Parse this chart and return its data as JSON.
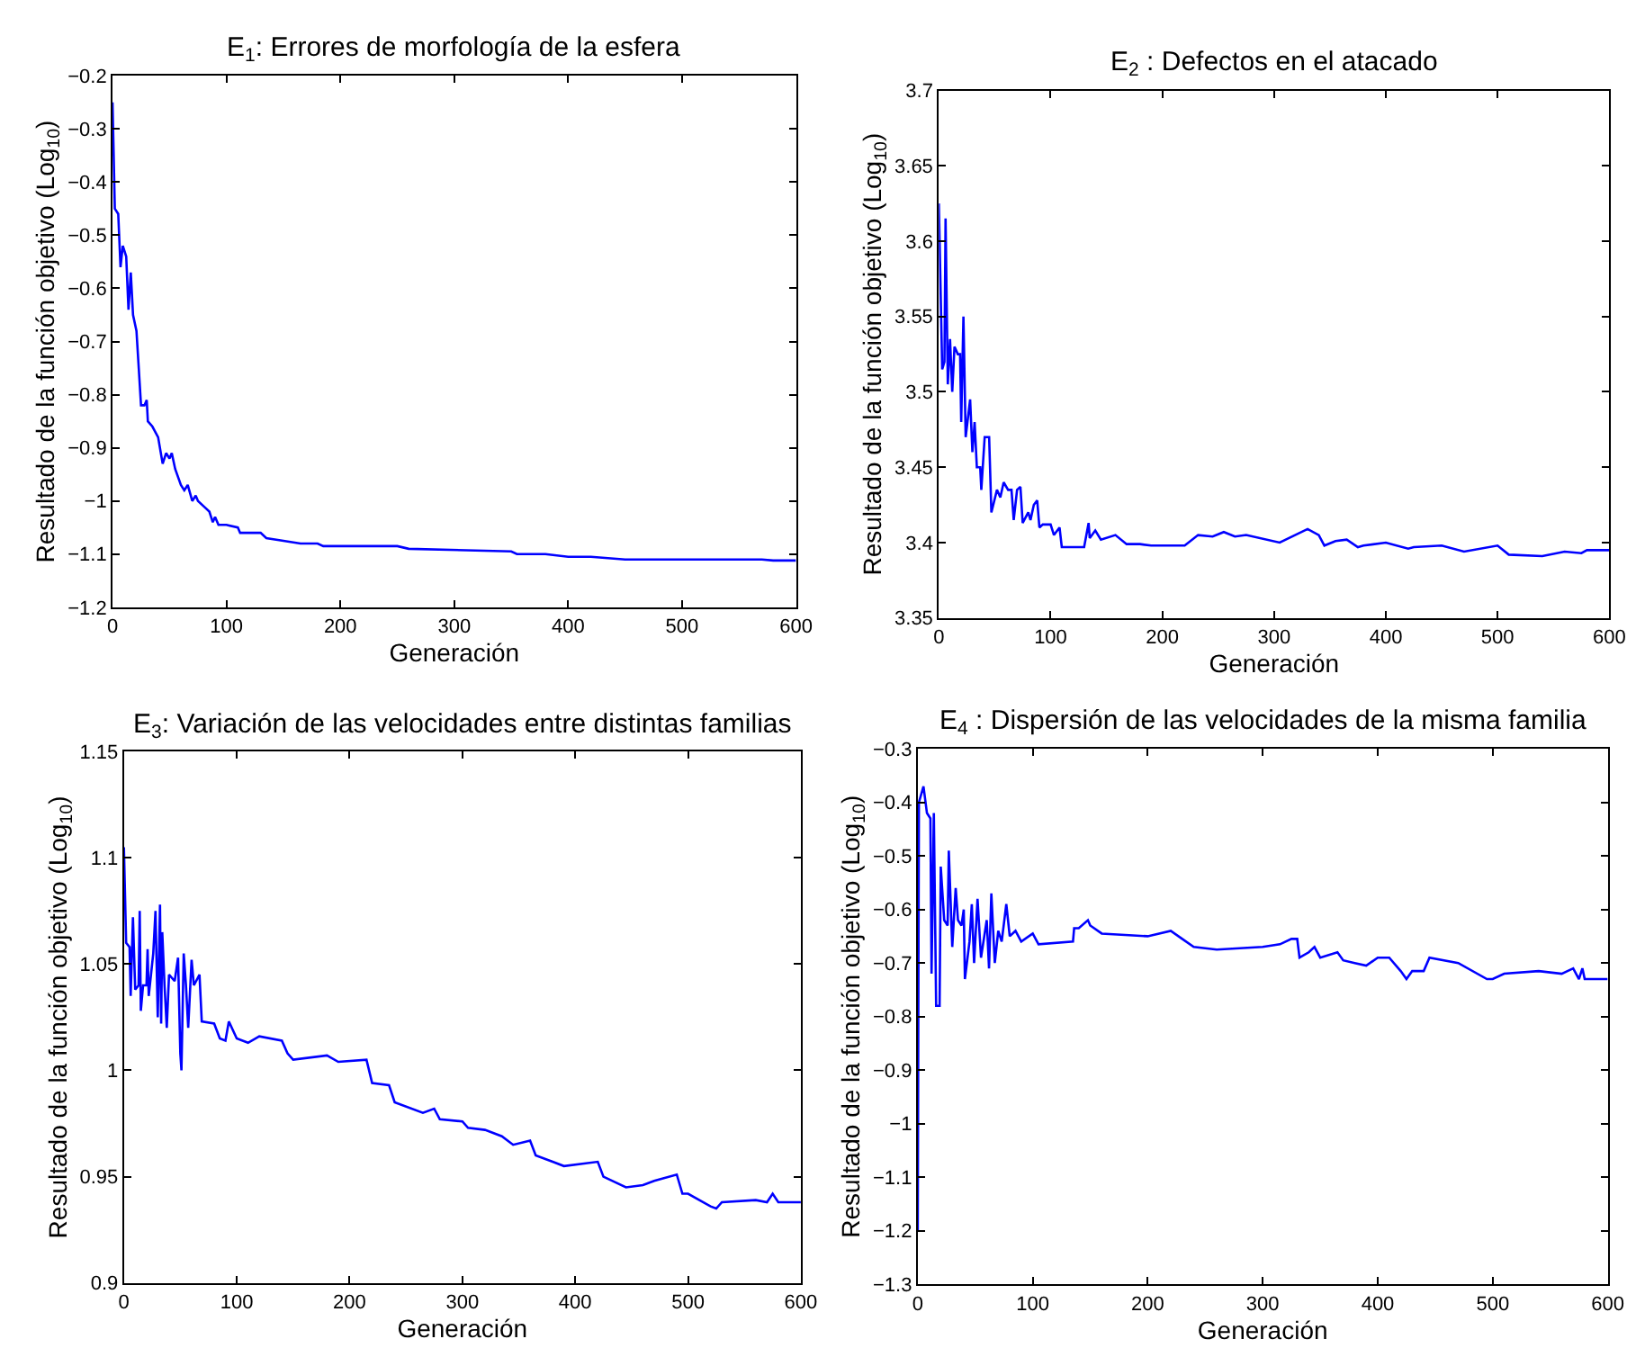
{
  "chart_data": [
    {
      "type": "line",
      "title": "E$_{1}$: Errores de morfología de la esfera",
      "xlabel": "Generación",
      "ylabel": "Resultado de la función objetivo (Log$_{10}$)",
      "xlim": [
        0,
        600
      ],
      "xticks": [
        0,
        100,
        200,
        300,
        400,
        500,
        600
      ],
      "ylim": [
        -1.2,
        -0.2
      ],
      "yticks": [
        -1.2,
        -1.1,
        -1,
        -0.9,
        -0.8,
        -0.7,
        -0.6,
        -0.5,
        -0.4,
        -0.3,
        -0.2
      ],
      "line_style": "solid",
      "series": [
        {
          "color": "#0000ff",
          "x": [
            0,
            2,
            5,
            7,
            9,
            12,
            14,
            16,
            18,
            21,
            23,
            25,
            28,
            30,
            31,
            35,
            40,
            44,
            47,
            50,
            52,
            55,
            60,
            63,
            66,
            70,
            73,
            75,
            80,
            85,
            88,
            90,
            93,
            100,
            110,
            112,
            130,
            135,
            150,
            165,
            180,
            185,
            250,
            260,
            350,
            355,
            380,
            400,
            420,
            450,
            500,
            570,
            580,
            600
          ],
          "values": [
            -0.25,
            -0.45,
            -0.46,
            -0.56,
            -0.52,
            -0.54,
            -0.64,
            -0.57,
            -0.65,
            -0.68,
            -0.75,
            -0.82,
            -0.82,
            -0.81,
            -0.85,
            -0.86,
            -0.88,
            -0.93,
            -0.91,
            -0.92,
            -0.91,
            -0.94,
            -0.97,
            -0.98,
            -0.97,
            -1.0,
            -0.99,
            -1.0,
            -1.01,
            -1.02,
            -1.04,
            -1.03,
            -1.045,
            -1.045,
            -1.05,
            -1.06,
            -1.06,
            -1.07,
            -1.075,
            -1.08,
            -1.08,
            -1.085,
            -1.085,
            -1.09,
            -1.095,
            -1.1,
            -1.1,
            -1.105,
            -1.105,
            -1.11,
            -1.11,
            -1.11,
            -1.112,
            -1.112
          ]
        }
      ]
    },
    {
      "type": "line",
      "title": "E$_{2}$ : Defectos en el atacado",
      "xlabel": "Generación",
      "ylabel": "Resultado de la función objetivo (Log$_{10}$)",
      "xlim": [
        0,
        600
      ],
      "xticks": [
        0,
        100,
        200,
        300,
        400,
        500,
        600
      ],
      "ylim": [
        3.35,
        3.7
      ],
      "yticks": [
        3.35,
        3.4,
        3.45,
        3.5,
        3.55,
        3.6,
        3.65,
        3.7
      ],
      "line_style": "solid",
      "series": [
        {
          "color": "#0000ff",
          "x": [
            0,
            3,
            5,
            6,
            8,
            10,
            12,
            14,
            17,
            19,
            20,
            22,
            24,
            28,
            30,
            32,
            34,
            37,
            38,
            41,
            45,
            47,
            52,
            55,
            58,
            62,
            65,
            67,
            70,
            73,
            75,
            80,
            82,
            85,
            88,
            90,
            93,
            100,
            103,
            108,
            110,
            130,
            134,
            135,
            140,
            145,
            158,
            168,
            180,
            190,
            220,
            232,
            245,
            255,
            265,
            275,
            305,
            330,
            340,
            345,
            355,
            365,
            375,
            380,
            400,
            420,
            425,
            450,
            470,
            500,
            510,
            540,
            560,
            575,
            580,
            600
          ],
          "values": [
            3.625,
            3.515,
            3.52,
            3.615,
            3.505,
            3.535,
            3.5,
            3.53,
            3.525,
            3.525,
            3.48,
            3.55,
            3.47,
            3.495,
            3.46,
            3.48,
            3.45,
            3.45,
            3.435,
            3.47,
            3.47,
            3.42,
            3.435,
            3.43,
            3.44,
            3.435,
            3.435,
            3.415,
            3.435,
            3.437,
            3.413,
            3.42,
            3.415,
            3.425,
            3.428,
            3.41,
            3.412,
            3.412,
            3.405,
            3.41,
            3.397,
            3.397,
            3.413,
            3.403,
            3.408,
            3.402,
            3.405,
            3.399,
            3.399,
            3.398,
            3.398,
            3.405,
            3.404,
            3.407,
            3.404,
            3.405,
            3.4,
            3.409,
            3.405,
            3.398,
            3.401,
            3.402,
            3.397,
            3.398,
            3.4,
            3.396,
            3.397,
            3.398,
            3.394,
            3.398,
            3.392,
            3.391,
            3.394,
            3.393,
            3.395,
            3.395
          ]
        }
      ]
    },
    {
      "type": "line",
      "title": "E$_{3}$: Variación de las velocidades entre distintas familias",
      "xlabel": "Generación",
      "ylabel": "Resultado de la función objetivo (Log$_{10}$)",
      "xlim": [
        0,
        600
      ],
      "xticks": [
        0,
        100,
        200,
        300,
        400,
        500,
        600
      ],
      "ylim": [
        0.9,
        1.15
      ],
      "yticks": [
        0.9,
        0.95,
        1,
        1.05,
        1.1,
        1.15
      ],
      "line_style": "solid",
      "series": [
        {
          "color": "#0000ff",
          "x": [
            0,
            2,
            5,
            6,
            8,
            10,
            13,
            14,
            15,
            17,
            20,
            21,
            22,
            26,
            28,
            29,
            30,
            32,
            33,
            34,
            36,
            38,
            40,
            45,
            48,
            50,
            51,
            53,
            55,
            57,
            60,
            62,
            67,
            69,
            80,
            85,
            90,
            93,
            100,
            110,
            120,
            140,
            145,
            150,
            180,
            190,
            215,
            220,
            235,
            240,
            265,
            275,
            280,
            300,
            305,
            320,
            335,
            345,
            360,
            365,
            380,
            390,
            420,
            425,
            445,
            460,
            470,
            490,
            495,
            500,
            520,
            525,
            530,
            560,
            570,
            575,
            580,
            600
          ],
          "values": [
            1.105,
            1.06,
            1.058,
            1.035,
            1.072,
            1.038,
            1.04,
            1.075,
            1.028,
            1.04,
            1.04,
            1.057,
            1.035,
            1.055,
            1.075,
            1.05,
            1.025,
            1.078,
            1.022,
            1.065,
            1.04,
            1.02,
            1.045,
            1.042,
            1.053,
            1.008,
            1.0,
            1.055,
            1.04,
            1.02,
            1.052,
            1.04,
            1.045,
            1.023,
            1.022,
            1.015,
            1.014,
            1.023,
            1.015,
            1.013,
            1.016,
            1.014,
            1.008,
            1.005,
            1.007,
            1.004,
            1.005,
            0.994,
            0.993,
            0.985,
            0.98,
            0.982,
            0.977,
            0.976,
            0.973,
            0.972,
            0.969,
            0.965,
            0.967,
            0.96,
            0.957,
            0.955,
            0.957,
            0.95,
            0.945,
            0.946,
            0.948,
            0.951,
            0.942,
            0.942,
            0.936,
            0.935,
            0.938,
            0.939,
            0.938,
            0.942,
            0.938,
            0.938
          ]
        }
      ]
    },
    {
      "type": "line",
      "title": "E$_{4}$ : Dispersión de las velocidades de la misma familia",
      "xlabel": "Generación",
      "ylabel": "Resultado de la función objetivo (Log$_{10}$)",
      "xlim": [
        0,
        600
      ],
      "xticks": [
        0,
        100,
        200,
        300,
        400,
        500,
        600
      ],
      "ylim": [
        -1.3,
        -0.3
      ],
      "yticks": [
        -1.3,
        -1.2,
        -1.1,
        -1,
        -0.9,
        -0.8,
        -0.7,
        -0.6,
        -0.5,
        -0.4,
        -0.3
      ],
      "line_style": "solid",
      "series": [
        {
          "color": "#0000ff",
          "x": [
            0,
            1,
            5,
            8,
            11,
            12,
            14,
            16,
            19,
            20,
            23,
            26,
            27,
            30,
            33,
            35,
            38,
            40,
            41,
            45,
            47,
            49,
            52,
            55,
            60,
            62,
            64,
            67,
            70,
            73,
            77,
            80,
            85,
            90,
            100,
            105,
            135,
            136,
            140,
            148,
            150,
            160,
            200,
            220,
            230,
            240,
            260,
            300,
            315,
            325,
            330,
            332,
            340,
            345,
            350,
            365,
            370,
            380,
            390,
            400,
            410,
            420,
            425,
            430,
            440,
            445,
            470,
            495,
            500,
            510,
            540,
            560,
            570,
            575,
            578,
            580,
            600
          ],
          "values": [
            -1.2,
            -0.4,
            -0.37,
            -0.42,
            -0.43,
            -0.72,
            -0.42,
            -0.78,
            -0.78,
            -0.52,
            -0.62,
            -0.63,
            -0.49,
            -0.67,
            -0.56,
            -0.62,
            -0.63,
            -0.6,
            -0.73,
            -0.66,
            -0.59,
            -0.7,
            -0.58,
            -0.69,
            -0.62,
            -0.71,
            -0.57,
            -0.7,
            -0.64,
            -0.66,
            -0.59,
            -0.65,
            -0.64,
            -0.66,
            -0.645,
            -0.665,
            -0.66,
            -0.635,
            -0.635,
            -0.62,
            -0.63,
            -0.645,
            -0.65,
            -0.64,
            -0.655,
            -0.67,
            -0.675,
            -0.67,
            -0.665,
            -0.655,
            -0.655,
            -0.69,
            -0.68,
            -0.67,
            -0.69,
            -0.68,
            -0.695,
            -0.7,
            -0.705,
            -0.69,
            -0.69,
            -0.715,
            -0.73,
            -0.715,
            -0.715,
            -0.69,
            -0.7,
            -0.73,
            -0.73,
            -0.72,
            -0.715,
            -0.72,
            -0.71,
            -0.73,
            -0.71,
            -0.73,
            -0.73
          ]
        }
      ]
    }
  ]
}
